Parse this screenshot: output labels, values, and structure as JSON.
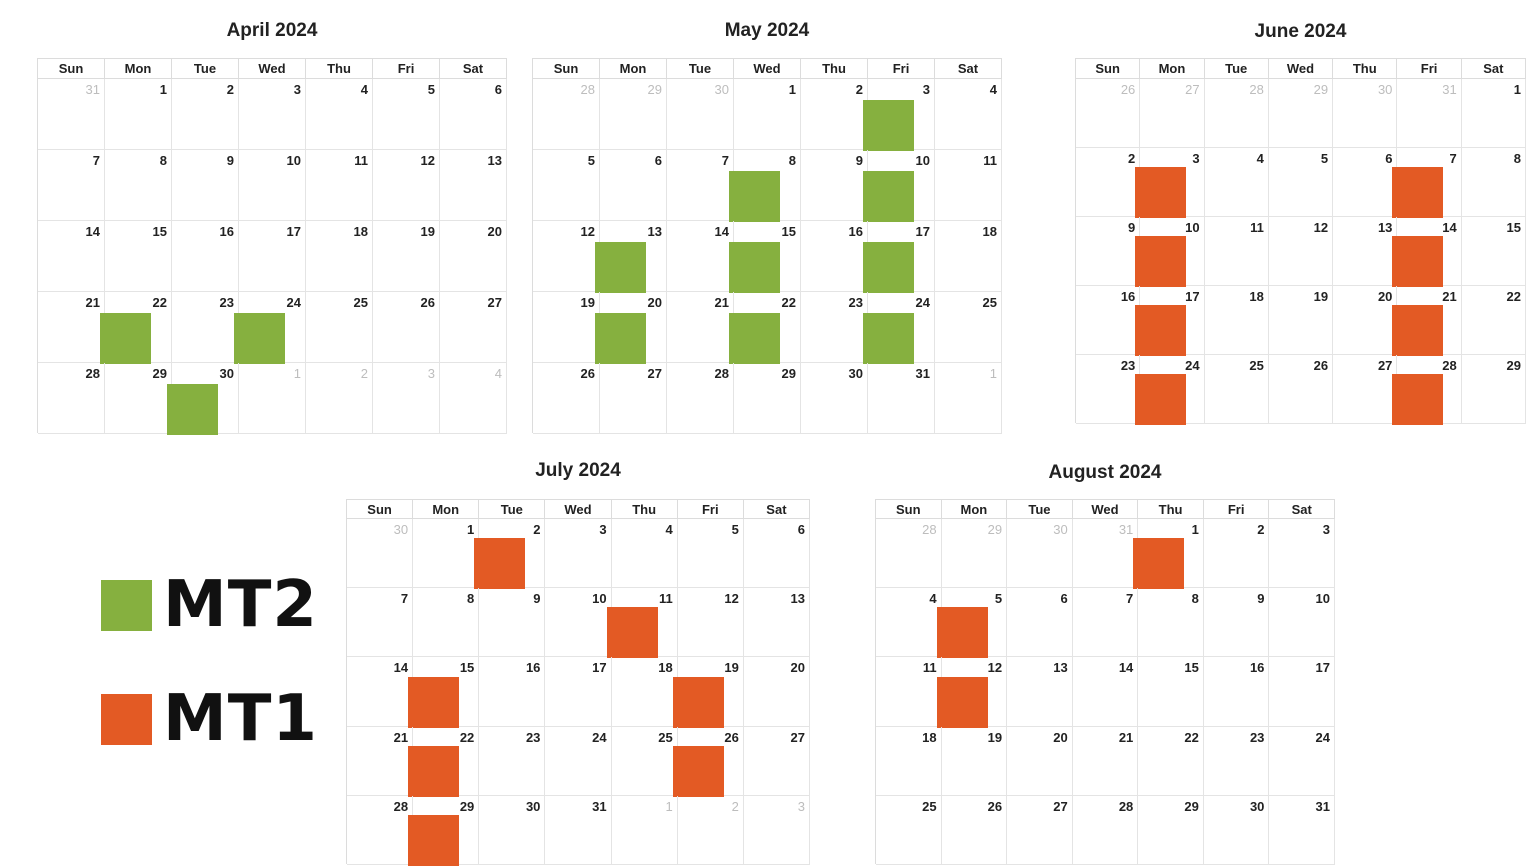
{
  "dow": [
    "Sun",
    "Mon",
    "Tue",
    "Wed",
    "Thu",
    "Fri",
    "Sat"
  ],
  "colors": {
    "MT2": "#86b03f",
    "MT1": "#e35a24"
  },
  "legend": [
    {
      "key": "MT2",
      "label": "MT2"
    },
    {
      "key": "MT1",
      "label": "MT1"
    }
  ],
  "calendars": [
    {
      "id": "april",
      "title": "April 2024",
      "first_dow": 1,
      "days": 30,
      "prev_days": 31,
      "events": [
        {
          "day": 22,
          "type": "MT2"
        },
        {
          "day": 24,
          "type": "MT2"
        },
        {
          "day": 30,
          "type": "MT2"
        }
      ]
    },
    {
      "id": "may",
      "title": "May 2024",
      "first_dow": 3,
      "days": 31,
      "prev_days": 30,
      "events": [
        {
          "day": 3,
          "type": "MT2"
        },
        {
          "day": 8,
          "type": "MT2"
        },
        {
          "day": 10,
          "type": "MT2"
        },
        {
          "day": 13,
          "type": "MT2"
        },
        {
          "day": 15,
          "type": "MT2"
        },
        {
          "day": 17,
          "type": "MT2"
        },
        {
          "day": 20,
          "type": "MT2"
        },
        {
          "day": 22,
          "type": "MT2"
        },
        {
          "day": 24,
          "type": "MT2"
        }
      ]
    },
    {
      "id": "june",
      "title": "June 2024",
      "first_dow": 6,
      "days": 30,
      "prev_days": 31,
      "events": [
        {
          "day": 3,
          "type": "MT1"
        },
        {
          "day": 7,
          "type": "MT1"
        },
        {
          "day": 10,
          "type": "MT1"
        },
        {
          "day": 14,
          "type": "MT1"
        },
        {
          "day": 17,
          "type": "MT1"
        },
        {
          "day": 21,
          "type": "MT1"
        },
        {
          "day": 24,
          "type": "MT1"
        },
        {
          "day": 28,
          "type": "MT1"
        }
      ]
    },
    {
      "id": "july",
      "title": "July 2024",
      "first_dow": 1,
      "days": 31,
      "prev_days": 30,
      "events": [
        {
          "day": 2,
          "type": "MT1"
        },
        {
          "day": 11,
          "type": "MT1"
        },
        {
          "day": 15,
          "type": "MT1"
        },
        {
          "day": 19,
          "type": "MT1"
        },
        {
          "day": 22,
          "type": "MT1"
        },
        {
          "day": 26,
          "type": "MT1"
        },
        {
          "day": 29,
          "type": "MT1"
        }
      ]
    },
    {
      "id": "august",
      "title": "August 2024",
      "first_dow": 4,
      "days": 31,
      "prev_days": 31,
      "events": [
        {
          "day": 1,
          "type": "MT1"
        },
        {
          "day": 5,
          "type": "MT1"
        },
        {
          "day": 12,
          "type": "MT1"
        }
      ]
    }
  ]
}
